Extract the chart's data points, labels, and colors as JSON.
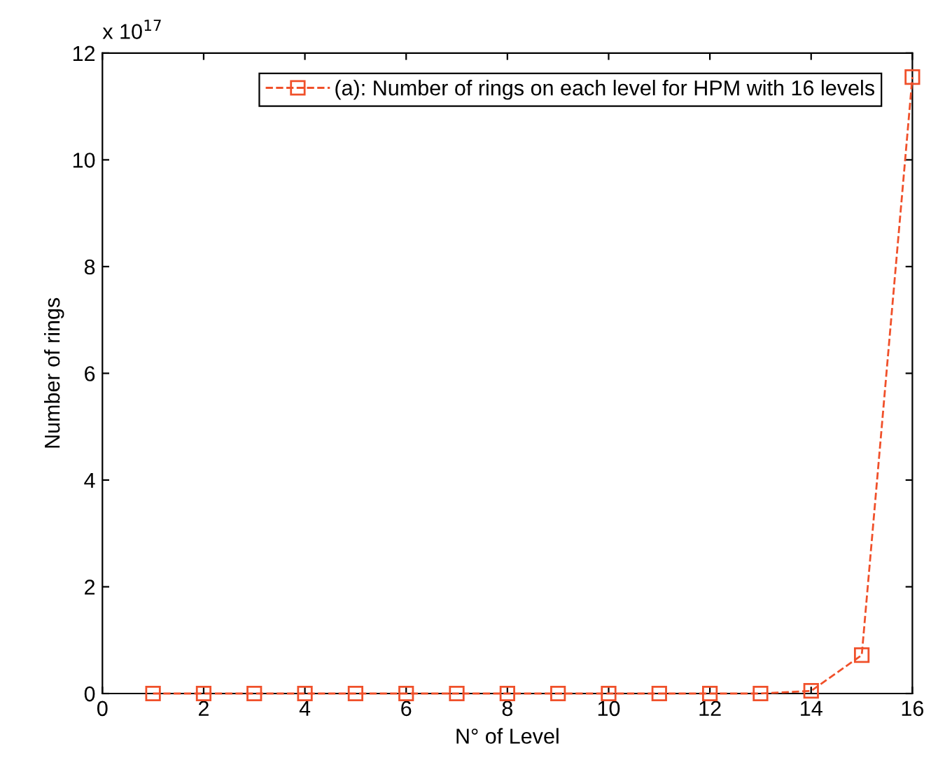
{
  "chart_data": {
    "type": "line",
    "xlabel": "N° of Level",
    "ylabel": "Number of rings",
    "annotations": [
      "x 10$^{17}$"
    ],
    "x": [
      1,
      2,
      3,
      4,
      5,
      6,
      7,
      8,
      9,
      10,
      11,
      12,
      13,
      14,
      15,
      16
    ],
    "series": [
      {
        "name": "(a): Number of rings on each level for HPM with 16 levels",
        "color": "#f0502a",
        "values": [
          0,
          0,
          0,
          0,
          0,
          0,
          0,
          0,
          0,
          0,
          0,
          0,
          0,
          0.05,
          0.72,
          11.55
        ]
      }
    ],
    "xlim": [
      0,
      16
    ],
    "xticks": [
      0,
      2,
      4,
      6,
      8,
      10,
      12,
      14,
      16
    ],
    "ylim": [
      0,
      12
    ],
    "yticks": [
      0,
      2,
      4,
      6,
      8,
      10,
      12
    ],
    "grid": false,
    "legend": "top right",
    "marker": "square",
    "line_style": "dashed"
  }
}
